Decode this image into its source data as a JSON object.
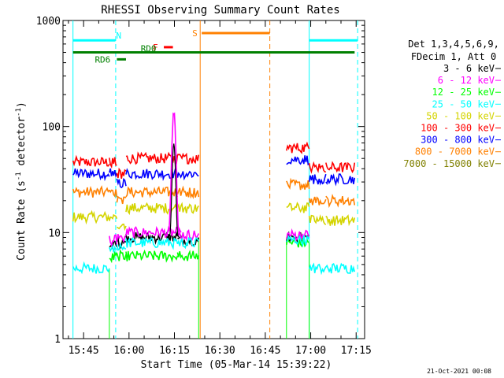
{
  "chart_data": {
    "type": "line",
    "title": "RHESSI Observing Summary Count Rates",
    "xlabel": "Start Time (05-Mar-14 15:39:22)",
    "ylabel_main": "Count Rate (s",
    "ylabel_sup1": "-1",
    "ylabel_mid": " detector",
    "ylabel_sup2": "-1",
    "ylabel_end": ")",
    "yscale": "log",
    "ylim": [
      1,
      1000
    ],
    "xlim_minutes": [
      15.633,
      17.3
    ],
    "yticks": [
      {
        "value": 1,
        "label": "1"
      },
      {
        "value": 10,
        "label": "10"
      },
      {
        "value": 100,
        "label": "100"
      },
      {
        "value": 1000,
        "label": "1000"
      }
    ],
    "xticks": [
      {
        "value": 945,
        "label": "15:45"
      },
      {
        "value": 960,
        "label": "16:00"
      },
      {
        "value": 975,
        "label": "16:15"
      },
      {
        "value": 990,
        "label": "16:30"
      },
      {
        "value": 1005,
        "label": "16:45"
      },
      {
        "value": 1020,
        "label": "17:00"
      },
      {
        "value": 1035,
        "label": "17:15"
      }
    ],
    "legend_header": [
      "Det 1,3,4,5,6,9,",
      "FDecim 1, Att 0"
    ],
    "legend": [
      {
        "label": "3 - 6 keV",
        "color": "#000000"
      },
      {
        "label": "6 - 12 keV",
        "color": "#ff00ff"
      },
      {
        "label": "12 - 25 keV",
        "color": "#00ff00"
      },
      {
        "label": "25 - 50 keV",
        "color": "#00ffff"
      },
      {
        "label": "50 - 100 keV",
        "color": "#d4d400"
      },
      {
        "label": "100 - 300 keV",
        "color": "#ff0000"
      },
      {
        "label": "300 - 800 keV",
        "color": "#0000ff"
      },
      {
        "label": "800 - 7000 keV",
        "color": "#ff8000"
      },
      {
        "label": "7000 - 15000 keV",
        "color": "#808000"
      }
    ],
    "segments": [
      {
        "x": [
          941.5,
          953.5
        ],
        "series": [
          {
            "name": "100 - 300 keV",
            "color": "#ff0000",
            "value": 46
          },
          {
            "name": "300 - 800 keV",
            "color": "#0000ff",
            "value": 36
          },
          {
            "name": "800 - 7000 keV",
            "color": "#ff8000",
            "value": 24
          },
          {
            "name": "50 - 100 keV",
            "color": "#d4d400",
            "value": 14
          },
          {
            "name": "25 - 50 keV",
            "color": "#00ffff",
            "value": 4.6
          }
        ]
      },
      {
        "x": [
          953.5,
          956.0
        ],
        "series": [
          {
            "name": "100 - 300 keV",
            "color": "#ff0000",
            "value": 46
          },
          {
            "name": "300 - 800 keV",
            "color": "#0000ff",
            "value": 36
          },
          {
            "name": "800 - 7000 keV",
            "color": "#ff8000",
            "value": 24
          },
          {
            "name": "50 - 100 keV",
            "color": "#d4d400",
            "value": 14
          },
          {
            "name": "3 - 6 keV",
            "color": "#000000",
            "value": 7.5
          },
          {
            "name": "6 - 12 keV",
            "color": "#ff00ff",
            "value": 8.5
          },
          {
            "name": "12 - 25 keV",
            "color": "#00ff00",
            "value": 5.8
          },
          {
            "name": "25 - 50 keV",
            "color": "#00ffff",
            "value": 6.8
          }
        ]
      },
      {
        "x": [
          956.0,
          959.0
        ],
        "series": [
          {
            "name": "100 - 300 keV",
            "color": "#ff0000",
            "value": 36
          },
          {
            "name": "300 - 800 keV",
            "color": "#0000ff",
            "value": 29
          },
          {
            "name": "800 - 7000 keV",
            "color": "#ff8000",
            "value": 20
          },
          {
            "name": "50 - 100 keV",
            "color": "#d4d400",
            "value": 12
          },
          {
            "name": "3 - 6 keV",
            "color": "#000000",
            "value": 8
          },
          {
            "name": "6 - 12 keV",
            "color": "#ff00ff",
            "value": 9
          },
          {
            "name": "12 - 25 keV",
            "color": "#00ff00",
            "value": 6
          },
          {
            "name": "25 - 50 keV",
            "color": "#00ffff",
            "value": 7
          }
        ]
      },
      {
        "x": [
          959.0,
          976.0
        ],
        "series": [
          {
            "name": "100 - 300 keV",
            "color": "#ff0000",
            "value": 50
          },
          {
            "name": "300 - 800 keV",
            "color": "#0000ff",
            "value": 36
          },
          {
            "name": "800 - 7000 keV",
            "color": "#ff8000",
            "value": 24
          },
          {
            "name": "50 - 100 keV",
            "color": "#d4d400",
            "value": 17
          },
          {
            "name": "3 - 6 keV",
            "color": "#000000",
            "value": 9
          },
          {
            "name": "6 - 12 keV",
            "color": "#ff00ff",
            "value": 10
          },
          {
            "name": "12 - 25 keV",
            "color": "#00ff00",
            "value": 6
          },
          {
            "name": "25 - 50 keV",
            "color": "#00ffff",
            "value": 8
          }
        ]
      },
      {
        "x": [
          976.0,
          983.0
        ],
        "series": [
          {
            "name": "100 - 300 keV",
            "color": "#ff0000",
            "value": 50
          },
          {
            "name": "300 - 800 keV",
            "color": "#0000ff",
            "value": 36
          },
          {
            "name": "800 - 7000 keV",
            "color": "#ff8000",
            "value": 24
          },
          {
            "name": "50 - 100 keV",
            "color": "#d4d400",
            "value": 17
          },
          {
            "name": "3 - 6 keV",
            "color": "#000000",
            "value": 8.5
          },
          {
            "name": "6 - 12 keV",
            "color": "#ff00ff",
            "value": 9.5
          },
          {
            "name": "12 - 25 keV",
            "color": "#00ff00",
            "value": 6
          },
          {
            "name": "25 - 50 keV",
            "color": "#00ffff",
            "value": 8
          }
        ]
      },
      {
        "x": [
          1012.0,
          1019.5
        ],
        "series": [
          {
            "name": "100 - 300 keV",
            "color": "#ff0000",
            "value": 63
          },
          {
            "name": "300 - 800 keV",
            "color": "#0000ff",
            "value": 49
          },
          {
            "name": "800 - 7000 keV",
            "color": "#ff8000",
            "value": 28
          },
          {
            "name": "50 - 100 keV",
            "color": "#d4d400",
            "value": 17
          },
          {
            "name": "3 - 6 keV",
            "color": "#000000",
            "value": 9
          },
          {
            "name": "6 - 12 keV",
            "color": "#ff00ff",
            "value": 9.5
          },
          {
            "name": "12 - 25 keV",
            "color": "#00ff00",
            "value": 8
          },
          {
            "name": "25 - 50 keV",
            "color": "#00ffff",
            "value": 8.5
          }
        ]
      },
      {
        "x": [
          1019.5,
          1025.0
        ],
        "series": [
          {
            "name": "100 - 300 keV",
            "color": "#ff0000",
            "value": 41
          },
          {
            "name": "300 - 800 keV",
            "color": "#0000ff",
            "value": 32
          },
          {
            "name": "800 - 7000 keV",
            "color": "#ff8000",
            "value": 20
          },
          {
            "name": "50 - 100 keV",
            "color": "#d4d400",
            "value": 13
          },
          {
            "name": "25 - 50 keV",
            "color": "#00ffff",
            "value": 4.6
          }
        ]
      },
      {
        "x": [
          1025.0,
          1034.5
        ],
        "series": [
          {
            "name": "100 - 300 keV",
            "color": "#ff0000",
            "value": 41
          },
          {
            "name": "300 - 800 keV",
            "color": "#0000ff",
            "value": 32
          },
          {
            "name": "800 - 7000 keV",
            "color": "#ff8000",
            "value": 20
          },
          {
            "name": "50 - 100 keV",
            "color": "#d4d400",
            "value": 13
          },
          {
            "name": "25 - 50 keV",
            "color": "#00ffff",
            "value": 4.6
          }
        ]
      }
    ],
    "flare_peak": {
      "series": "6 - 12 keV",
      "color": "#ff00ff",
      "time": 974.8,
      "value": 140
    },
    "annotations": [
      {
        "id": "N",
        "label": "N",
        "color": "#00ffff",
        "level": 650,
        "x_start": 941.5,
        "x_end": 955.5
      },
      {
        "id": "N2",
        "label": "",
        "color": "#00ffff",
        "level": 650,
        "x_start": 1019.5,
        "x_end": 1035.5
      },
      {
        "id": "S",
        "label": "S",
        "color": "#ff8000",
        "level": 760,
        "x_start": 984.0,
        "x_end": 1006.5
      },
      {
        "id": "F",
        "label": "F",
        "color": "#ff0000",
        "level": 560,
        "x_start": 971.5,
        "x_end": 974.5
      },
      {
        "id": "RD0",
        "label": "RD0",
        "color": "#008000",
        "level": 500,
        "x_start": 941.5,
        "x_end": 1034.5
      },
      {
        "id": "RD6",
        "label": "RD6",
        "color": "#008000",
        "level": 430,
        "x_start": 956.0,
        "x_end": 959.0
      }
    ],
    "vertical_markers": [
      {
        "x": 941.5,
        "color": "#00ffff",
        "style": "solid"
      },
      {
        "x": 955.6,
        "color": "#00ffff",
        "style": "dashed"
      },
      {
        "x": 983.5,
        "color": "#ff8000",
        "style": "solid"
      },
      {
        "x": 1006.5,
        "color": "#ff8000",
        "style": "dashed"
      },
      {
        "x": 1019.5,
        "color": "#00ffff",
        "style": "solid"
      },
      {
        "x": 1035.5,
        "color": "#00ffff",
        "style": "dashed"
      }
    ],
    "timestamp": "21-Oct-2021 00:08"
  }
}
